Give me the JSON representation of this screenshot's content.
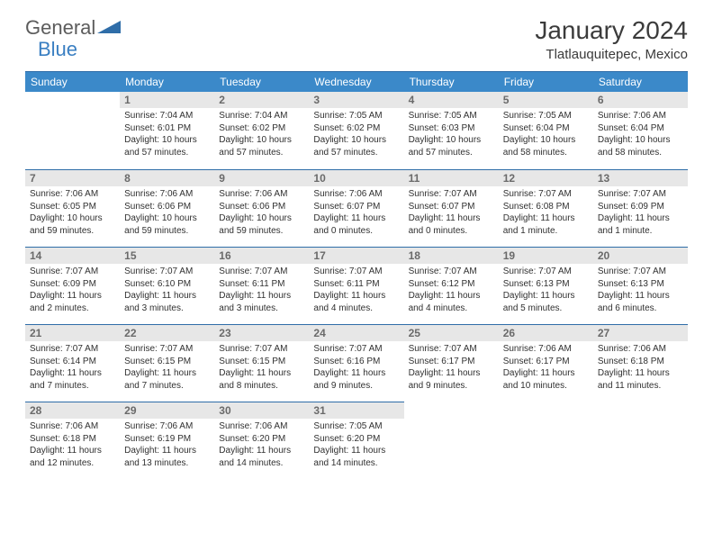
{
  "logo": {
    "text_a": "General",
    "text_b": "Blue"
  },
  "title": "January 2024",
  "subtitle": "Tlatlauquitepec, Mexico",
  "header_bg": "#3b89c9",
  "border_color": "#2f6da8",
  "date_bg": "#e7e7e7",
  "weekdays": [
    "Sunday",
    "Monday",
    "Tuesday",
    "Wednesday",
    "Thursday",
    "Friday",
    "Saturday"
  ],
  "cells": [
    {
      "date": "",
      "sunrise": "",
      "sunset": "",
      "daylight": ""
    },
    {
      "date": "1",
      "sunrise": "Sunrise: 7:04 AM",
      "sunset": "Sunset: 6:01 PM",
      "daylight": "Daylight: 10 hours and 57 minutes."
    },
    {
      "date": "2",
      "sunrise": "Sunrise: 7:04 AM",
      "sunset": "Sunset: 6:02 PM",
      "daylight": "Daylight: 10 hours and 57 minutes."
    },
    {
      "date": "3",
      "sunrise": "Sunrise: 7:05 AM",
      "sunset": "Sunset: 6:02 PM",
      "daylight": "Daylight: 10 hours and 57 minutes."
    },
    {
      "date": "4",
      "sunrise": "Sunrise: 7:05 AM",
      "sunset": "Sunset: 6:03 PM",
      "daylight": "Daylight: 10 hours and 57 minutes."
    },
    {
      "date": "5",
      "sunrise": "Sunrise: 7:05 AM",
      "sunset": "Sunset: 6:04 PM",
      "daylight": "Daylight: 10 hours and 58 minutes."
    },
    {
      "date": "6",
      "sunrise": "Sunrise: 7:06 AM",
      "sunset": "Sunset: 6:04 PM",
      "daylight": "Daylight: 10 hours and 58 minutes."
    },
    {
      "date": "7",
      "sunrise": "Sunrise: 7:06 AM",
      "sunset": "Sunset: 6:05 PM",
      "daylight": "Daylight: 10 hours and 59 minutes."
    },
    {
      "date": "8",
      "sunrise": "Sunrise: 7:06 AM",
      "sunset": "Sunset: 6:06 PM",
      "daylight": "Daylight: 10 hours and 59 minutes."
    },
    {
      "date": "9",
      "sunrise": "Sunrise: 7:06 AM",
      "sunset": "Sunset: 6:06 PM",
      "daylight": "Daylight: 10 hours and 59 minutes."
    },
    {
      "date": "10",
      "sunrise": "Sunrise: 7:06 AM",
      "sunset": "Sunset: 6:07 PM",
      "daylight": "Daylight: 11 hours and 0 minutes."
    },
    {
      "date": "11",
      "sunrise": "Sunrise: 7:07 AM",
      "sunset": "Sunset: 6:07 PM",
      "daylight": "Daylight: 11 hours and 0 minutes."
    },
    {
      "date": "12",
      "sunrise": "Sunrise: 7:07 AM",
      "sunset": "Sunset: 6:08 PM",
      "daylight": "Daylight: 11 hours and 1 minute."
    },
    {
      "date": "13",
      "sunrise": "Sunrise: 7:07 AM",
      "sunset": "Sunset: 6:09 PM",
      "daylight": "Daylight: 11 hours and 1 minute."
    },
    {
      "date": "14",
      "sunrise": "Sunrise: 7:07 AM",
      "sunset": "Sunset: 6:09 PM",
      "daylight": "Daylight: 11 hours and 2 minutes."
    },
    {
      "date": "15",
      "sunrise": "Sunrise: 7:07 AM",
      "sunset": "Sunset: 6:10 PM",
      "daylight": "Daylight: 11 hours and 3 minutes."
    },
    {
      "date": "16",
      "sunrise": "Sunrise: 7:07 AM",
      "sunset": "Sunset: 6:11 PM",
      "daylight": "Daylight: 11 hours and 3 minutes."
    },
    {
      "date": "17",
      "sunrise": "Sunrise: 7:07 AM",
      "sunset": "Sunset: 6:11 PM",
      "daylight": "Daylight: 11 hours and 4 minutes."
    },
    {
      "date": "18",
      "sunrise": "Sunrise: 7:07 AM",
      "sunset": "Sunset: 6:12 PM",
      "daylight": "Daylight: 11 hours and 4 minutes."
    },
    {
      "date": "19",
      "sunrise": "Sunrise: 7:07 AM",
      "sunset": "Sunset: 6:13 PM",
      "daylight": "Daylight: 11 hours and 5 minutes."
    },
    {
      "date": "20",
      "sunrise": "Sunrise: 7:07 AM",
      "sunset": "Sunset: 6:13 PM",
      "daylight": "Daylight: 11 hours and 6 minutes."
    },
    {
      "date": "21",
      "sunrise": "Sunrise: 7:07 AM",
      "sunset": "Sunset: 6:14 PM",
      "daylight": "Daylight: 11 hours and 7 minutes."
    },
    {
      "date": "22",
      "sunrise": "Sunrise: 7:07 AM",
      "sunset": "Sunset: 6:15 PM",
      "daylight": "Daylight: 11 hours and 7 minutes."
    },
    {
      "date": "23",
      "sunrise": "Sunrise: 7:07 AM",
      "sunset": "Sunset: 6:15 PM",
      "daylight": "Daylight: 11 hours and 8 minutes."
    },
    {
      "date": "24",
      "sunrise": "Sunrise: 7:07 AM",
      "sunset": "Sunset: 6:16 PM",
      "daylight": "Daylight: 11 hours and 9 minutes."
    },
    {
      "date": "25",
      "sunrise": "Sunrise: 7:07 AM",
      "sunset": "Sunset: 6:17 PM",
      "daylight": "Daylight: 11 hours and 9 minutes."
    },
    {
      "date": "26",
      "sunrise": "Sunrise: 7:06 AM",
      "sunset": "Sunset: 6:17 PM",
      "daylight": "Daylight: 11 hours and 10 minutes."
    },
    {
      "date": "27",
      "sunrise": "Sunrise: 7:06 AM",
      "sunset": "Sunset: 6:18 PM",
      "daylight": "Daylight: 11 hours and 11 minutes."
    },
    {
      "date": "28",
      "sunrise": "Sunrise: 7:06 AM",
      "sunset": "Sunset: 6:18 PM",
      "daylight": "Daylight: 11 hours and 12 minutes."
    },
    {
      "date": "29",
      "sunrise": "Sunrise: 7:06 AM",
      "sunset": "Sunset: 6:19 PM",
      "daylight": "Daylight: 11 hours and 13 minutes."
    },
    {
      "date": "30",
      "sunrise": "Sunrise: 7:06 AM",
      "sunset": "Sunset: 6:20 PM",
      "daylight": "Daylight: 11 hours and 14 minutes."
    },
    {
      "date": "31",
      "sunrise": "Sunrise: 7:05 AM",
      "sunset": "Sunset: 6:20 PM",
      "daylight": "Daylight: 11 hours and 14 minutes."
    },
    {
      "date": "",
      "sunrise": "",
      "sunset": "",
      "daylight": ""
    },
    {
      "date": "",
      "sunrise": "",
      "sunset": "",
      "daylight": ""
    },
    {
      "date": "",
      "sunrise": "",
      "sunset": "",
      "daylight": ""
    }
  ]
}
